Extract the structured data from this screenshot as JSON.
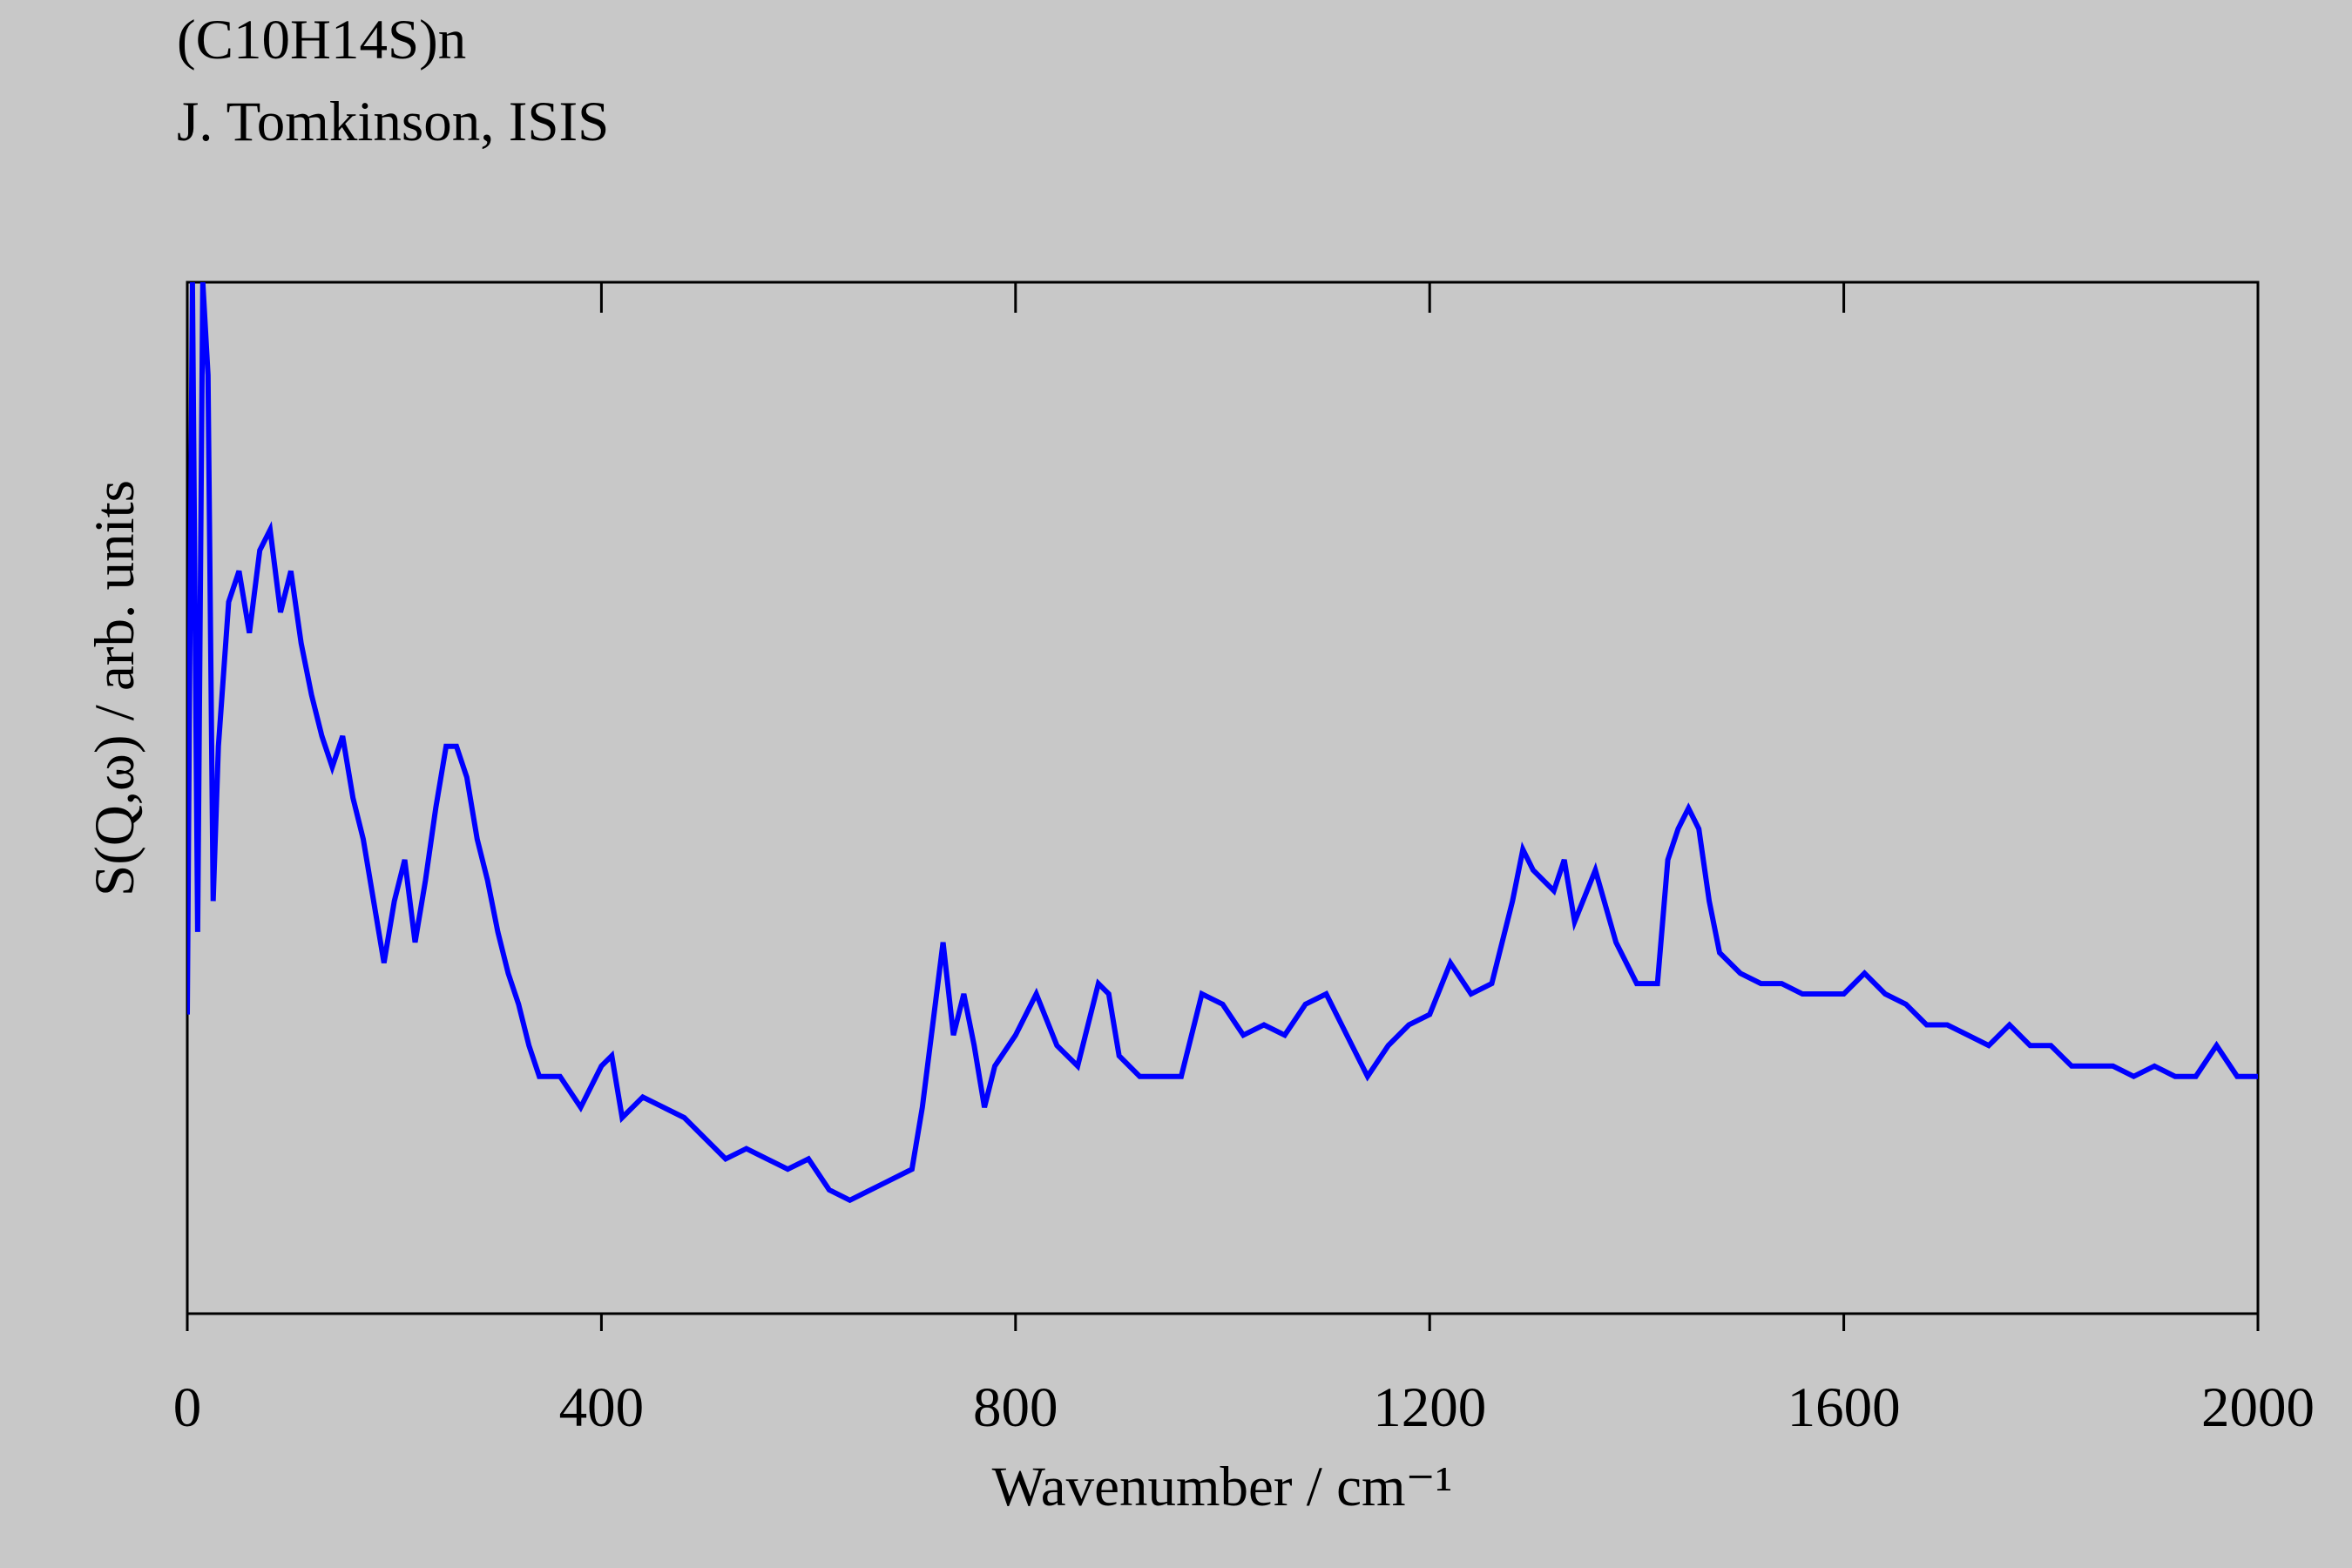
{
  "chart_data": {
    "type": "line",
    "title": "(C10H14S)n",
    "subtitle": "J. Tomkinson, ISIS",
    "xlabel": "Wavenumber / cm⁻¹",
    "ylabel": "S(Q,ω) / arb. units",
    "xlim": [
      0,
      2000
    ],
    "xticks": [
      0,
      400,
      800,
      1200,
      1600,
      2000
    ],
    "ylim": [
      0,
      100
    ],
    "color": "#0000ff",
    "x": [
      0,
      5,
      10,
      15,
      20,
      25,
      30,
      40,
      50,
      60,
      70,
      80,
      90,
      100,
      110,
      120,
      130,
      140,
      150,
      160,
      170,
      180,
      190,
      200,
      210,
      220,
      230,
      240,
      250,
      260,
      270,
      280,
      290,
      300,
      310,
      320,
      330,
      340,
      360,
      380,
      400,
      410,
      420,
      440,
      460,
      480,
      500,
      520,
      540,
      560,
      580,
      600,
      620,
      640,
      660,
      680,
      700,
      710,
      720,
      730,
      740,
      750,
      760,
      770,
      780,
      800,
      820,
      840,
      860,
      880,
      890,
      900,
      920,
      940,
      960,
      980,
      1000,
      1020,
      1040,
      1060,
      1080,
      1100,
      1120,
      1140,
      1160,
      1180,
      1200,
      1220,
      1240,
      1260,
      1280,
      1290,
      1300,
      1320,
      1330,
      1340,
      1360,
      1380,
      1400,
      1420,
      1430,
      1440,
      1450,
      1460,
      1470,
      1480,
      1500,
      1520,
      1540,
      1560,
      1580,
      1600,
      1620,
      1640,
      1660,
      1680,
      1700,
      1720,
      1740,
      1760,
      1780,
      1800,
      1820,
      1840,
      1860,
      1880,
      1900,
      1920,
      1940,
      1960,
      1980,
      2000
    ],
    "values": [
      29,
      100,
      37,
      100,
      91,
      40,
      55,
      69,
      72,
      66,
      74,
      76,
      68,
      72,
      65,
      60,
      56,
      53,
      56,
      50,
      46,
      40,
      34,
      40,
      44,
      36,
      42,
      49,
      55,
      55,
      52,
      46,
      42,
      37,
      33,
      30,
      26,
      23,
      23,
      20,
      24,
      25,
      19,
      21,
      20,
      19,
      17,
      15,
      16,
      15,
      14,
      15,
      12,
      11,
      12,
      13,
      14,
      20,
      28,
      36,
      27,
      31,
      26,
      20,
      24,
      27,
      31,
      26,
      24,
      32,
      31,
      25,
      23,
      23,
      23,
      31,
      30,
      27,
      28,
      27,
      30,
      31,
      27,
      23,
      26,
      28,
      29,
      34,
      31,
      32,
      40,
      45,
      43,
      41,
      44,
      38,
      43,
      36,
      32,
      32,
      44,
      47,
      49,
      47,
      40,
      35,
      33,
      32,
      32,
      31,
      31,
      31,
      33,
      31,
      30,
      28,
      28,
      27,
      26,
      28,
      26,
      26,
      24,
      24,
      24,
      23,
      24,
      23,
      23,
      26,
      23,
      23
    ]
  }
}
